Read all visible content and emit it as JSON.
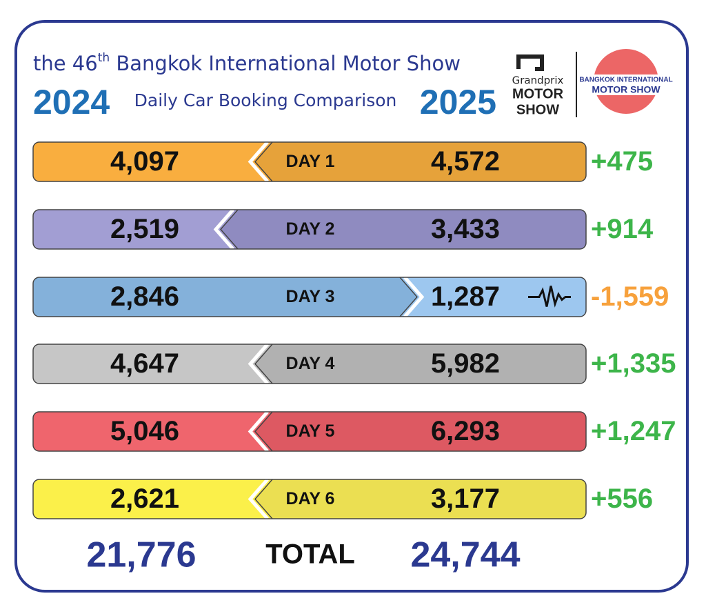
{
  "header": {
    "title": {
      "before": "the 46",
      "sup": "th",
      "after": " Bangkok International Motor Show"
    },
    "year_left": "2024",
    "subtitle": "Daily Car Booking Comparison",
    "year_right": "2025",
    "logo_left": {
      "top": "Grandprix",
      "line1": "MOTOR",
      "line2": "SHOW"
    },
    "logo_right": {
      "line1": "BANGKOK INTERNATIONAL",
      "line2": "MOTOR SHOW"
    }
  },
  "rows": [
    {
      "label": "DAY 1",
      "left": "4,097",
      "right": "4,572",
      "diff": "+475",
      "left_color": "#f9ae3f",
      "right_color": "#e6a23a",
      "diff_color": "#3db54a"
    },
    {
      "label": "DAY 2",
      "left": "2,519",
      "right": "3,433",
      "diff": "+914",
      "left_color": "#a29ed3",
      "right_color": "#8f8bc0",
      "diff_color": "#3db54a"
    },
    {
      "label": "DAY 3",
      "left": "2,846",
      "right": "1,287",
      "diff": "-1,559",
      "left_color": "#84b1da",
      "right_color": "#9dc7ef",
      "diff_color": "#f7a13c"
    },
    {
      "label": "DAY 4",
      "left": "4,647",
      "right": "5,982",
      "diff": "+1,335",
      "left_color": "#c6c6c6",
      "right_color": "#b1b1b1",
      "diff_color": "#3db54a"
    },
    {
      "label": "DAY 5",
      "left": "5,046",
      "right": "6,293",
      "diff": "+1,247",
      "left_color": "#ef656d",
      "right_color": "#dd5962",
      "diff_color": "#3db54a"
    },
    {
      "label": "DAY 6",
      "left": "2,621",
      "right": "3,177",
      "diff": "+556",
      "left_color": "#fbf04a",
      "right_color": "#ebdf52",
      "diff_color": "#3db54a"
    }
  ],
  "total": {
    "left": "21,776",
    "label": "TOTAL",
    "right": "24,744"
  }
}
